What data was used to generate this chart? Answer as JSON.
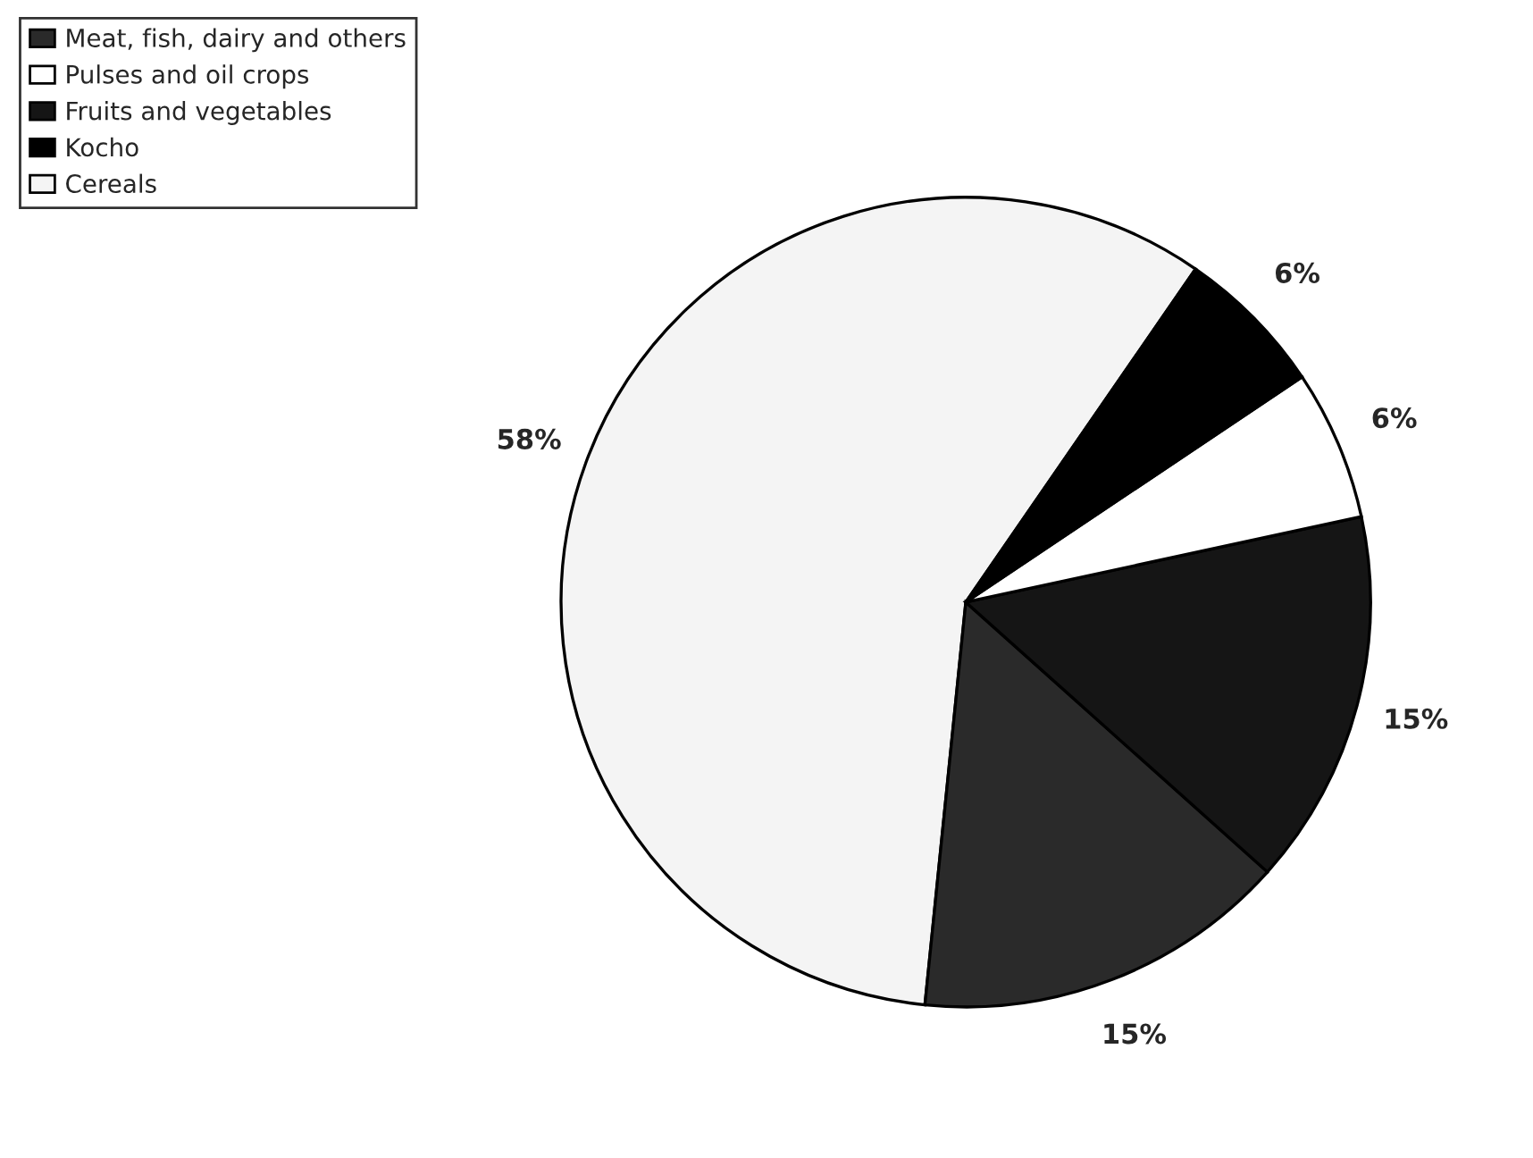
{
  "chart_data": {
    "type": "pie",
    "categories": [
      "Cereals",
      "Meat, fish, dairy and others",
      "Fruits and vegetables",
      "Pulses and oil crops",
      "Kocho"
    ],
    "values": [
      58,
      15,
      15,
      6,
      6
    ],
    "colors": [
      "#f4f4f4",
      "#2a2a2a",
      "#151515",
      "#ffffff",
      "#000000"
    ],
    "value_labels": [
      "58%",
      "15%",
      "15%",
      "6%",
      "6%"
    ],
    "legend": "top left"
  }
}
